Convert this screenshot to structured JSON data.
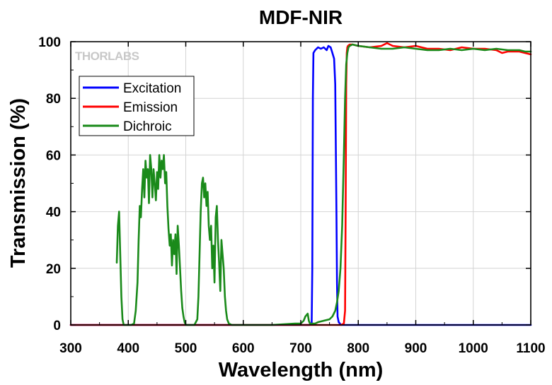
{
  "chart_data": {
    "type": "line",
    "title": "MDF-NIR",
    "xlabel": "Wavelength (nm)",
    "ylabel": "Transmission (%)",
    "xlim": [
      300,
      1100
    ],
    "ylim": [
      0,
      100
    ],
    "xticks": [
      300,
      400,
      500,
      600,
      700,
      800,
      900,
      1000,
      1100
    ],
    "yticks": [
      0,
      20,
      40,
      60,
      80,
      100
    ],
    "grid": true,
    "legend_position": "top-left",
    "watermark": "THORLABS",
    "series": [
      {
        "name": "Excitation",
        "color": "#0000ff",
        "x": [
          300,
          700,
          715,
          719,
          720,
          721,
          722,
          725,
          730,
          735,
          740,
          745,
          748,
          752,
          755,
          758,
          760,
          762,
          763,
          764,
          766,
          770,
          780,
          800,
          900,
          1000,
          1100
        ],
        "y": [
          0,
          0,
          0,
          0.5,
          20,
          80,
          96,
          97,
          98,
          97.5,
          98,
          97,
          98.5,
          98,
          96,
          94,
          85,
          40,
          15,
          3,
          1,
          0,
          0,
          0,
          0,
          0,
          0
        ]
      },
      {
        "name": "Emission",
        "color": "#ff0000",
        "x": [
          300,
          700,
          770,
          775,
          777,
          778,
          779,
          780,
          781,
          782,
          785,
          790,
          800,
          820,
          840,
          850,
          860,
          880,
          900,
          920,
          940,
          960,
          980,
          1000,
          1020,
          1040,
          1050,
          1060,
          1070,
          1080,
          1090,
          1100
        ],
        "y": [
          0,
          0,
          0,
          0.5,
          5,
          40,
          85,
          96,
          98,
          98.5,
          99,
          99,
          98.5,
          98,
          98.5,
          99.5,
          98.5,
          98,
          98.5,
          97.5,
          97.5,
          97,
          98,
          97.5,
          97.5,
          97,
          96,
          96.5,
          96.5,
          96.5,
          96,
          95.5
        ]
      },
      {
        "name": "Dichroic",
        "color": "#1a8a1a",
        "x": [
          380,
          382,
          384,
          386,
          388,
          390,
          392,
          395,
          400,
          405,
          410,
          413,
          416,
          418,
          420,
          422,
          424,
          426,
          428,
          430,
          432,
          434,
          436,
          438,
          440,
          442,
          444,
          446,
          448,
          450,
          452,
          454,
          456,
          458,
          460,
          462,
          464,
          466,
          468,
          470,
          472,
          474,
          476,
          478,
          480,
          482,
          484,
          486,
          488,
          490,
          492,
          494,
          496,
          498,
          500,
          503,
          506,
          510,
          515,
          520,
          522,
          524,
          526,
          528,
          530,
          532,
          534,
          536,
          538,
          540,
          542,
          544,
          546,
          548,
          550,
          552,
          554,
          556,
          558,
          560,
          562,
          564,
          566,
          568,
          570,
          572,
          575,
          580,
          600,
          650,
          690,
          700,
          705,
          708,
          712,
          714,
          716,
          718,
          720,
          725,
          730,
          740,
          750,
          755,
          760,
          763,
          766,
          769,
          772,
          775,
          777,
          779,
          781,
          783,
          785,
          790,
          800,
          820,
          840,
          860,
          880,
          900,
          920,
          940,
          960,
          980,
          1000,
          1020,
          1040,
          1060,
          1080,
          1090,
          1100
        ],
        "y": [
          22,
          35,
          40,
          25,
          10,
          2,
          0,
          0,
          0,
          0,
          0.5,
          5,
          15,
          30,
          42,
          38,
          48,
          55,
          45,
          58,
          52,
          55,
          43,
          60,
          55,
          45,
          55,
          50,
          44,
          54,
          48,
          60,
          52,
          58,
          55,
          60,
          50,
          54,
          42,
          34,
          28,
          32,
          21,
          30,
          25,
          32,
          18,
          35,
          28,
          20,
          12,
          6,
          3,
          1,
          0,
          0,
          0,
          0,
          0,
          2,
          10,
          25,
          40,
          50,
          52,
          45,
          50,
          42,
          47,
          35,
          30,
          35,
          20,
          28,
          15,
          38,
          42,
          30,
          22,
          12,
          30,
          25,
          20,
          10,
          5,
          2,
          0.5,
          0,
          0,
          0,
          0.5,
          0.5,
          1.5,
          3,
          4,
          1.5,
          0.5,
          0.3,
          0.5,
          0.5,
          1,
          1.5,
          2,
          3,
          5,
          8,
          12,
          20,
          35,
          60,
          80,
          92,
          96,
          98,
          98.5,
          99,
          98.5,
          98,
          97.5,
          97.5,
          98,
          97.5,
          97,
          97,
          97.5,
          97,
          97.5,
          97,
          97.5,
          97,
          97,
          96.5,
          96.5
        ]
      }
    ]
  }
}
